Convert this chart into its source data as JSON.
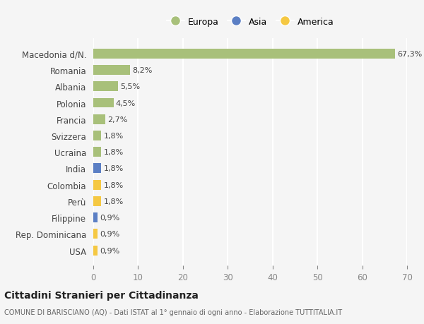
{
  "categories": [
    "USA",
    "Rep. Dominicana",
    "Filippine",
    "Perù",
    "Colombia",
    "India",
    "Ucraina",
    "Svizzera",
    "Francia",
    "Polonia",
    "Albania",
    "Romania",
    "Macedonia d/N."
  ],
  "values": [
    0.9,
    0.9,
    0.9,
    1.8,
    1.8,
    1.8,
    1.8,
    1.8,
    2.7,
    4.5,
    5.5,
    8.2,
    67.3
  ],
  "labels": [
    "0,9%",
    "0,9%",
    "0,9%",
    "1,8%",
    "1,8%",
    "1,8%",
    "1,8%",
    "1,8%",
    "2,7%",
    "4,5%",
    "5,5%",
    "8,2%",
    "67,3%"
  ],
  "colors": [
    "#f5c842",
    "#f5c842",
    "#5b7fc4",
    "#f5c842",
    "#f5c842",
    "#5b7fc4",
    "#a8c07a",
    "#a8c07a",
    "#a8c07a",
    "#a8c07a",
    "#a8c07a",
    "#a8c07a",
    "#a8c07a"
  ],
  "continent_colors": {
    "Europa": "#a8c07a",
    "Asia": "#5b7fc4",
    "America": "#f5c842"
  },
  "xlim": [
    0,
    70
  ],
  "xticks": [
    0,
    10,
    20,
    30,
    40,
    50,
    60,
    70
  ],
  "background_color": "#f5f5f5",
  "grid_color": "#ffffff",
  "title": "Cittadini Stranieri per Cittadinanza",
  "subtitle": "COMUNE DI BARISCIANO (AQ) - Dati ISTAT al 1° gennaio di ogni anno - Elaborazione TUTTITALIA.IT",
  "bar_height": 0.6
}
